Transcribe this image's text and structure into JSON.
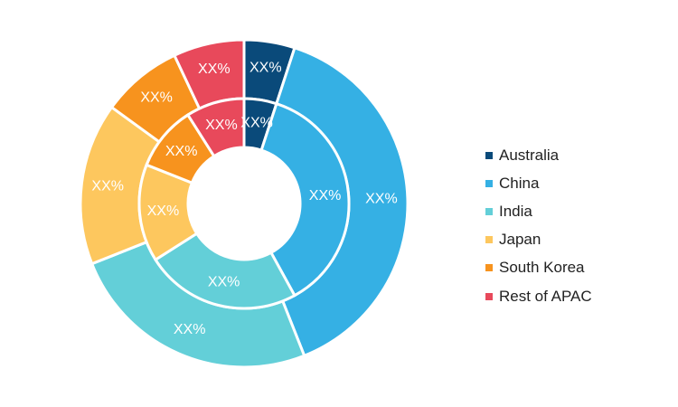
{
  "chart_data": {
    "type": "donut",
    "title": "",
    "categories": [
      "Australia",
      "China",
      "India",
      "Japan",
      "South Korea",
      "Rest of APAC"
    ],
    "colors": [
      "#0a4a7a",
      "#35b0e4",
      "#63cfd8",
      "#fdc75e",
      "#f7931e",
      "#e8495b"
    ],
    "series": [
      {
        "ring": "outer",
        "values": [
          5,
          39,
          25,
          16,
          8,
          7
        ],
        "labels": [
          "XX%",
          "XX%",
          "XX%",
          "XX%",
          "XX%",
          "XX%"
        ]
      },
      {
        "ring": "inner",
        "values": [
          5,
          37,
          24,
          15,
          10,
          9
        ],
        "labels": [
          "XX%",
          "XX%",
          "XX%",
          "XX%",
          "XX%",
          "XX%"
        ]
      }
    ],
    "legend": {
      "position": "right"
    }
  }
}
